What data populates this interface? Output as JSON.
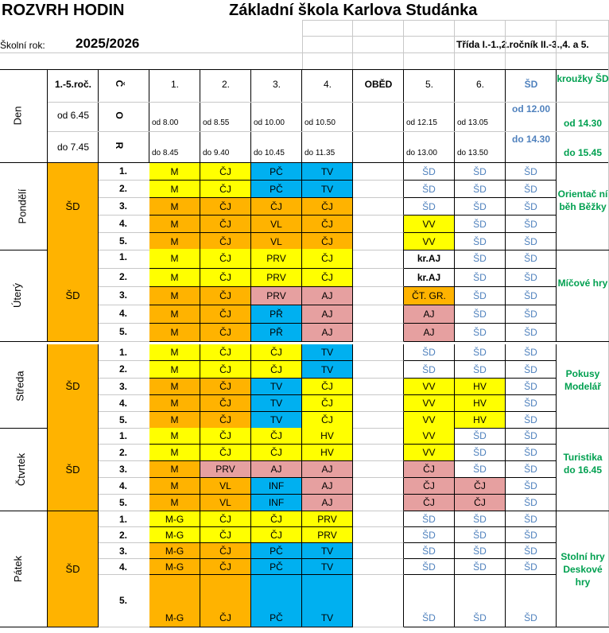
{
  "header": {
    "title_left": "ROZVRH  HODIN",
    "title_right": "Základní škola Karlova Studánka",
    "school_year_label": "Školní rok:",
    "school_year": "2025/2026",
    "class_info": "Třída I.-1.,2.ročník  II.-3.,4. a 5."
  },
  "columns": {
    "day": "Den",
    "grades": "1.-5.roč.",
    "roc": [
      "Č",
      "O",
      "R"
    ],
    "p1": "1.",
    "p2": "2.",
    "p3": "3.",
    "p4": "4.",
    "lunch": "OBĚD",
    "p5": "5.",
    "p6": "6.",
    "sd": "ŠD",
    "clubs": "kroužky ŠD"
  },
  "times": {
    "from_label": "od 6.45",
    "to_label": "do 7.45",
    "p1_from": "od  8.00",
    "p1_to": "do  8.45",
    "p2_from": "od  8.55",
    "p2_to": "do  9.40",
    "p3_from": "od  10.00",
    "p3_to": "do  10.45",
    "p4_from": "od  10.50",
    "p4_to": "do  11.35",
    "p5_from": "od  12.15",
    "p5_to": "do  13.00",
    "p6_from": "od  13.05",
    "p6_to": "do  13.50",
    "sd_from": "od 12.00",
    "sd_to": "do 14.30",
    "clubs_from": "od 14.30",
    "clubs_to": "do 15.45"
  },
  "days": [
    {
      "name": "Pondělí",
      "morning": "ŠD",
      "club": "Orientač ní běh Běžky",
      "rows": [
        {
          "n": "1.",
          "c": [
            [
              "M",
              "yl"
            ],
            [
              "ČJ",
              "yl"
            ],
            [
              "PČ",
              "bl"
            ],
            [
              "TV",
              "bl"
            ],
            [
              "",
              ""
            ],
            [
              "ŠD",
              "sd"
            ],
            [
              "ŠD",
              "sd"
            ],
            [
              "ŠD",
              "sd"
            ]
          ]
        },
        {
          "n": "2.",
          "c": [
            [
              "M",
              "yl"
            ],
            [
              "ČJ",
              "yl"
            ],
            [
              "PČ",
              "bl"
            ],
            [
              "TV",
              "bl"
            ],
            [
              "",
              ""
            ],
            [
              "ŠD",
              "sd"
            ],
            [
              "ŠD",
              "sd"
            ],
            [
              "ŠD",
              "sd"
            ]
          ]
        },
        {
          "n": "3.",
          "c": [
            [
              "M",
              "or"
            ],
            [
              "ČJ",
              "or"
            ],
            [
              "ČJ",
              "or"
            ],
            [
              "ČJ",
              "or"
            ],
            [
              "",
              ""
            ],
            [
              "ŠD",
              "sd"
            ],
            [
              "ŠD",
              "sd"
            ],
            [
              "ŠD",
              "sd"
            ]
          ]
        },
        {
          "n": "4.",
          "c": [
            [
              "M",
              "or"
            ],
            [
              "ČJ",
              "or"
            ],
            [
              "VL",
              "or"
            ],
            [
              "ČJ",
              "or"
            ],
            [
              "",
              ""
            ],
            [
              "VV",
              "yl"
            ],
            [
              "ŠD",
              "sd"
            ],
            [
              "ŠD",
              "sd"
            ]
          ]
        },
        {
          "n": "5.",
          "c": [
            [
              "M",
              "or"
            ],
            [
              "ČJ",
              "or"
            ],
            [
              "VL",
              "or"
            ],
            [
              "ČJ",
              "or"
            ],
            [
              "",
              ""
            ],
            [
              "VV",
              "yl"
            ],
            [
              "ŠD",
              "sd"
            ],
            [
              "ŠD",
              "sd"
            ]
          ]
        }
      ]
    },
    {
      "name": "Úterý",
      "morning": "ŠD",
      "club": "Míčové hry",
      "rows": [
        {
          "n": "1.",
          "c": [
            [
              "M",
              "yl"
            ],
            [
              "ČJ",
              "yl"
            ],
            [
              "PRV",
              "yl"
            ],
            [
              "ČJ",
              "yl"
            ],
            [
              "",
              ""
            ],
            [
              "kr.AJ",
              "bold"
            ],
            [
              "ŠD",
              "sd"
            ],
            [
              "ŠD",
              "sd"
            ]
          ]
        },
        {
          "n": "2.",
          "c": [
            [
              "M",
              "yl"
            ],
            [
              "ČJ",
              "yl"
            ],
            [
              "PRV",
              "yl"
            ],
            [
              "ČJ",
              "yl"
            ],
            [
              "",
              ""
            ],
            [
              "kr.AJ",
              "bold"
            ],
            [
              "ŠD",
              "sd"
            ],
            [
              "ŠD",
              "sd"
            ]
          ]
        },
        {
          "n": "3.",
          "c": [
            [
              "M",
              "or"
            ],
            [
              "ČJ",
              "or"
            ],
            [
              "PRV",
              "pk"
            ],
            [
              "AJ",
              "pk"
            ],
            [
              "",
              ""
            ],
            [
              "ČT. GR.",
              "or"
            ],
            [
              "ŠD",
              "sd"
            ],
            [
              "ŠD",
              "sd"
            ]
          ]
        },
        {
          "n": "4.",
          "c": [
            [
              "M",
              "or"
            ],
            [
              "ČJ",
              "or"
            ],
            [
              "PŘ",
              "bl"
            ],
            [
              "AJ",
              "pk"
            ],
            [
              "",
              ""
            ],
            [
              "AJ",
              "pk"
            ],
            [
              "ŠD",
              "sd"
            ],
            [
              "ŠD",
              "sd"
            ]
          ]
        },
        {
          "n": "5.",
          "c": [
            [
              "M",
              "or"
            ],
            [
              "ČJ",
              "or"
            ],
            [
              "PŘ",
              "bl"
            ],
            [
              "AJ",
              "pk"
            ],
            [
              "",
              ""
            ],
            [
              "AJ",
              "pk"
            ],
            [
              "ŠD",
              "sd"
            ],
            [
              "ŠD",
              "sd"
            ]
          ]
        }
      ]
    },
    {
      "name": "Středa",
      "morning": "ŠD",
      "club": "Pokusy Modelář",
      "rows": [
        {
          "n": "1.",
          "c": [
            [
              "M",
              "yl"
            ],
            [
              "ČJ",
              "yl"
            ],
            [
              "ČJ",
              "yl"
            ],
            [
              "TV",
              "bl"
            ],
            [
              "",
              ""
            ],
            [
              "ŠD",
              "sd"
            ],
            [
              "ŠD",
              "sd"
            ],
            [
              "ŠD",
              "sd"
            ]
          ]
        },
        {
          "n": "2.",
          "c": [
            [
              "M",
              "yl"
            ],
            [
              "ČJ",
              "yl"
            ],
            [
              "ČJ",
              "yl"
            ],
            [
              "TV",
              "bl"
            ],
            [
              "",
              ""
            ],
            [
              "ŠD",
              "sd"
            ],
            [
              "ŠD",
              "sd"
            ],
            [
              "ŠD",
              "sd"
            ]
          ]
        },
        {
          "n": "3.",
          "c": [
            [
              "M",
              "or"
            ],
            [
              "ČJ",
              "or"
            ],
            [
              "TV",
              "bl"
            ],
            [
              "ČJ",
              "yl"
            ],
            [
              "",
              ""
            ],
            [
              "VV",
              "yl"
            ],
            [
              "HV",
              "yl"
            ],
            [
              "ŠD",
              "sd"
            ]
          ]
        },
        {
          "n": "4.",
          "c": [
            [
              "M",
              "or"
            ],
            [
              "ČJ",
              "or"
            ],
            [
              "TV",
              "bl"
            ],
            [
              "ČJ",
              "yl"
            ],
            [
              "",
              ""
            ],
            [
              "VV",
              "yl"
            ],
            [
              "HV",
              "yl"
            ],
            [
              "ŠD",
              "sd"
            ]
          ]
        },
        {
          "n": "5.",
          "c": [
            [
              "M",
              "or"
            ],
            [
              "ČJ",
              "or"
            ],
            [
              "TV",
              "bl"
            ],
            [
              "ČJ",
              "yl"
            ],
            [
              "",
              ""
            ],
            [
              "VV",
              "yl"
            ],
            [
              "HV",
              "yl"
            ],
            [
              "ŠD",
              "sd"
            ]
          ]
        }
      ]
    },
    {
      "name": "Čtvrtek",
      "morning": "ŠD",
      "club": "Turistika do 16.45",
      "rows": [
        {
          "n": "1.",
          "c": [
            [
              "M",
              "yl"
            ],
            [
              "ČJ",
              "yl"
            ],
            [
              "ČJ",
              "yl"
            ],
            [
              "HV",
              "yl"
            ],
            [
              "",
              ""
            ],
            [
              "VV",
              "yl"
            ],
            [
              "ŠD",
              "sd"
            ],
            [
              "ŠD",
              "sd"
            ]
          ]
        },
        {
          "n": "2.",
          "c": [
            [
              "M",
              "yl"
            ],
            [
              "ČJ",
              "yl"
            ],
            [
              "ČJ",
              "yl"
            ],
            [
              "HV",
              "yl"
            ],
            [
              "",
              ""
            ],
            [
              "VV",
              "yl"
            ],
            [
              "ŠD",
              "sd"
            ],
            [
              "ŠD",
              "sd"
            ]
          ]
        },
        {
          "n": "3.",
          "c": [
            [
              "M",
              "or"
            ],
            [
              "PRV",
              "pk"
            ],
            [
              "AJ",
              "pk"
            ],
            [
              "AJ",
              "pk"
            ],
            [
              "",
              ""
            ],
            [
              "ČJ",
              "pk"
            ],
            [
              "ŠD",
              "sd"
            ],
            [
              "ŠD",
              "sd"
            ]
          ]
        },
        {
          "n": "4.",
          "c": [
            [
              "M",
              "or"
            ],
            [
              "VL",
              "or"
            ],
            [
              "INF",
              "bl"
            ],
            [
              "AJ",
              "pk"
            ],
            [
              "",
              ""
            ],
            [
              "ČJ",
              "pk"
            ],
            [
              "ČJ",
              "pk"
            ],
            [
              "ŠD",
              "sd"
            ]
          ]
        },
        {
          "n": "5.",
          "c": [
            [
              "M",
              "or"
            ],
            [
              "VL",
              "or"
            ],
            [
              "INF",
              "bl"
            ],
            [
              "AJ",
              "pk"
            ],
            [
              "",
              ""
            ],
            [
              "ČJ",
              "pk"
            ],
            [
              "ČJ",
              "pk"
            ],
            [
              "ŠD",
              "sd"
            ]
          ]
        }
      ]
    },
    {
      "name": "Pátek",
      "morning": "ŠD",
      "club": "Stolní hry Deskové hry",
      "rows": [
        {
          "n": "1.",
          "c": [
            [
              "M-G",
              "yl"
            ],
            [
              "ČJ",
              "yl"
            ],
            [
              "ČJ",
              "yl"
            ],
            [
              "PRV",
              "yl"
            ],
            [
              "",
              ""
            ],
            [
              "ŠD",
              "sd"
            ],
            [
              "ŠD",
              "sd"
            ],
            [
              "ŠD",
              "sd"
            ]
          ]
        },
        {
          "n": "2.",
          "c": [
            [
              "M-G",
              "yl"
            ],
            [
              "ČJ",
              "yl"
            ],
            [
              "ČJ",
              "yl"
            ],
            [
              "PRV",
              "yl"
            ],
            [
              "",
              ""
            ],
            [
              "ŠD",
              "sd"
            ],
            [
              "ŠD",
              "sd"
            ],
            [
              "ŠD",
              "sd"
            ]
          ]
        },
        {
          "n": "3.",
          "c": [
            [
              "M-G",
              "or"
            ],
            [
              "ČJ",
              "or"
            ],
            [
              "PČ",
              "bl"
            ],
            [
              "TV",
              "bl"
            ],
            [
              "",
              ""
            ],
            [
              "ŠD",
              "sd"
            ],
            [
              "ŠD",
              "sd"
            ],
            [
              "ŠD",
              "sd"
            ]
          ]
        },
        {
          "n": "4.",
          "c": [
            [
              "M-G",
              "or"
            ],
            [
              "ČJ",
              "or"
            ],
            [
              "PČ",
              "bl"
            ],
            [
              "TV",
              "bl"
            ],
            [
              "",
              ""
            ],
            [
              "ŠD",
              "sd"
            ],
            [
              "ŠD",
              "sd"
            ],
            [
              "ŠD",
              "sd"
            ]
          ]
        },
        {
          "n": "5.",
          "c": [
            [
              "M-G",
              "or"
            ],
            [
              "ČJ",
              "or"
            ],
            [
              "PČ",
              "bl"
            ],
            [
              "TV",
              "bl"
            ],
            [
              "",
              ""
            ],
            [
              "ŠD",
              "sd"
            ],
            [
              "ŠD",
              "sd"
            ],
            [
              "ŠD",
              "sd"
            ]
          ]
        }
      ]
    }
  ],
  "colors": {
    "yellow": "#ffff00",
    "orange": "#ffb300",
    "blue": "#00b0f0",
    "pink": "#e6a0a0",
    "sd_text": "#4f81bd",
    "club_text": "#00a050"
  }
}
